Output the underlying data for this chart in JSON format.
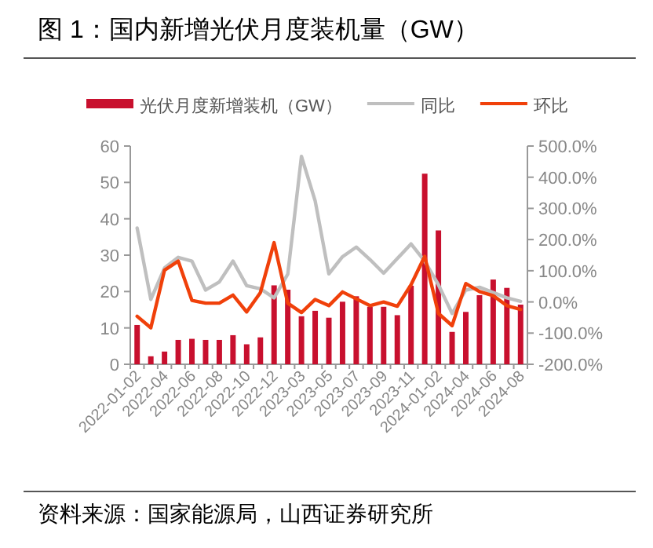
{
  "chart_data": {
    "type": "bar",
    "title": "图 1：国内新增光伏月度装机量（GW）",
    "annotations": [
      "资料来源：国家能源局，山西证券研究所"
    ],
    "categories": [
      "2022-01-02",
      null,
      "2022-04",
      null,
      "2022-06",
      null,
      "2022-08",
      null,
      "2022-10",
      null,
      "2022-12",
      null,
      "2023-03",
      null,
      "2023-05",
      null,
      "2023-07",
      null,
      "2023-09",
      null,
      "2023-11",
      null,
      "2024-01-02",
      null,
      "2024-04",
      null,
      "2024-06",
      null,
      "2024-08"
    ],
    "series": [
      {
        "name": "光伏月度新增装机（GW）",
        "color": "#c8102e",
        "values": [
          10.8,
          2.2,
          3.5,
          6.7,
          7.0,
          6.7,
          6.7,
          8.0,
          5.5,
          7.4,
          21.7,
          20.5,
          13.2,
          14.7,
          12.8,
          17.2,
          18.7,
          15.8,
          15.8,
          13.5,
          21.6,
          52.4,
          36.8,
          8.9,
          14.4,
          19.0,
          23.3,
          21.0,
          16.4
        ]
      },
      {
        "name": "同比",
        "type": "line",
        "axis": "y2",
        "color": "#bfbfbf",
        "values": [
          237,
          8,
          109,
          143,
          131,
          38,
          64,
          131,
          52,
          42,
          13,
          89,
          467,
          324,
          90,
          145,
          176,
          136,
          92,
          139,
          186,
          131,
          55,
          -37,
          38,
          47,
          30,
          13,
          2
        ]
      },
      {
        "name": "环比",
        "type": "line",
        "axis": "y2",
        "color": "#f0400a",
        "values": [
          -46,
          -83,
          102,
          131,
          5,
          -4,
          -4,
          22,
          -32,
          30,
          190,
          -4,
          -34,
          8,
          -12,
          32,
          10,
          -12,
          0,
          -14,
          55,
          146,
          -37,
          -76,
          59,
          33,
          20,
          -12,
          -24
        ]
      }
    ],
    "ylim": [
      0,
      60
    ],
    "yticks": [
      0,
      10,
      20,
      30,
      40,
      50,
      60
    ],
    "y2lim": [
      -200,
      500
    ],
    "y2ticks": [
      {
        "value": -200,
        "label": "-200.0%"
      },
      {
        "value": -100,
        "label": "-100.0%"
      },
      {
        "value": 0,
        "label": "0.0%"
      },
      {
        "value": 100,
        "label": "100.0%"
      },
      {
        "value": 200,
        "label": "200.0%"
      },
      {
        "value": 300,
        "label": "300.0%"
      },
      {
        "value": 400,
        "label": "400.0%"
      },
      {
        "value": 500,
        "label": "500.0%"
      }
    ],
    "legend": "top",
    "grid": false,
    "marker": "none",
    "line_style": "solid"
  }
}
